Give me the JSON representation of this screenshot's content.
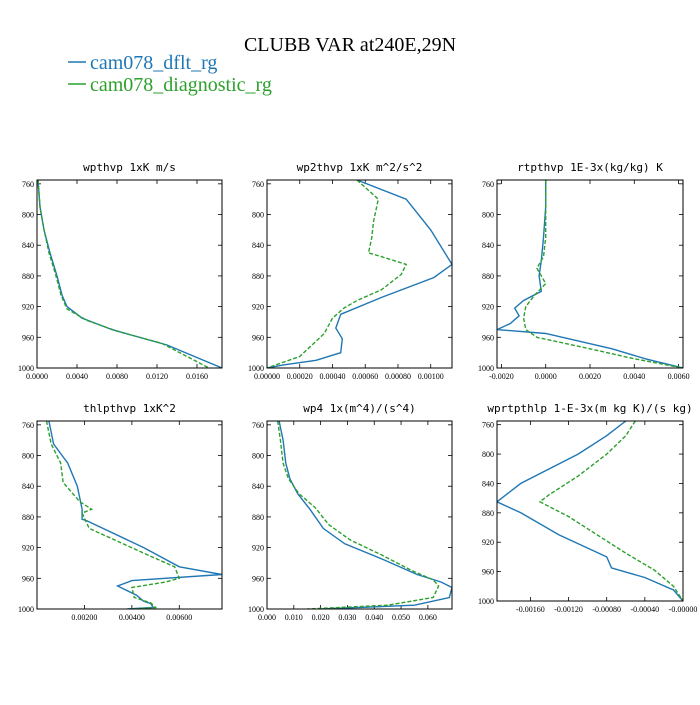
{
  "figure": {
    "title": "CLUBB VAR at240E,29N",
    "legend": [
      {
        "label": "cam078_dflt_rg",
        "color": "#1f77b4",
        "dash": "solid"
      },
      {
        "label": "cam078_diagnostic_rg",
        "color": "#2ca02c",
        "dash": "dashed"
      }
    ]
  },
  "chart_data": [
    {
      "type": "line",
      "title": "wpthvp  1xK m/s",
      "xlim": [
        0,
        0.0185
      ],
      "xticks": [
        0,
        0.004,
        0.008,
        0.012,
        0.016
      ],
      "xtick_labels": [
        "0.0000",
        "0.0040",
        "0.0080",
        "0.0120",
        "0.0160"
      ],
      "ylim": [
        1000,
        755
      ],
      "yticks": [
        1000,
        960,
        920,
        880,
        840,
        800,
        760
      ],
      "ytick_labels": [
        "1000",
        "960",
        "920",
        "880",
        "840",
        "800",
        "760"
      ],
      "series": [
        {
          "name": "cam078_dflt_rg",
          "x": [
            0.0001,
            0.0003,
            0.0007,
            0.0013,
            0.002,
            0.0025,
            0.003,
            0.0045,
            0.0075,
            0.013,
            0.0185
          ],
          "y": [
            755,
            790,
            820,
            850,
            880,
            905,
            920,
            935,
            950,
            970,
            1000
          ]
        },
        {
          "name": "cam078_diagnostic_rg",
          "x": [
            0.0001,
            0.0003,
            0.0007,
            0.0012,
            0.0019,
            0.0024,
            0.003,
            0.005,
            0.008,
            0.0125,
            0.0172
          ],
          "y": [
            755,
            790,
            820,
            850,
            880,
            905,
            923,
            938,
            952,
            968,
            1000
          ]
        }
      ]
    },
    {
      "type": "line",
      "title": "wp2thvp  1xK m^2/s^2",
      "xlim": [
        0,
        0.00113
      ],
      "xticks": [
        0,
        0.0002,
        0.0004,
        0.0006,
        0.0008,
        0.001
      ],
      "xtick_labels": [
        "0.00000",
        "0.00020",
        "0.00040",
        "0.00060",
        "0.00080",
        "0.00100"
      ],
      "ylim": [
        1000,
        755
      ],
      "yticks": [
        1000,
        960,
        920,
        880,
        840,
        800,
        760
      ],
      "ytick_labels": [
        "1000",
        "960",
        "920",
        "880",
        "840",
        "800",
        "760"
      ],
      "series": [
        {
          "name": "cam078_dflt_rg",
          "x": [
            0.00055,
            0.00085,
            0.001,
            0.00113,
            0.00102,
            0.0007,
            0.00045,
            0.00042,
            0.00046,
            0.00045,
            0.0003,
            0.0001,
            0.0
          ],
          "y": [
            755,
            780,
            820,
            865,
            882,
            908,
            930,
            948,
            962,
            980,
            990,
            996,
            1000
          ]
        },
        {
          "name": "cam078_diagnostic_rg",
          "x": [
            0.00055,
            0.00068,
            0.00065,
            0.00064,
            0.00062,
            0.0007,
            0.00085,
            0.00082,
            0.0007,
            0.00055,
            0.00047,
            0.0004,
            0.00035,
            0.0002,
            0.0
          ],
          "y": [
            755,
            780,
            810,
            830,
            850,
            855,
            865,
            878,
            898,
            912,
            922,
            935,
            955,
            985,
            1000
          ]
        }
      ]
    },
    {
      "type": "line",
      "title": "rtpthvp  1E-3x(kg/kg) K",
      "xlim": [
        -0.0022,
        0.0062
      ],
      "xticks": [
        -0.002,
        0,
        0.002,
        0.004,
        0.006
      ],
      "xtick_labels": [
        "-0.0020",
        "0.0000",
        "0.0020",
        "0.0040",
        "0.0060"
      ],
      "ylim": [
        1000,
        755
      ],
      "yticks": [
        1000,
        960,
        920,
        880,
        840,
        800,
        760
      ],
      "ytick_labels": [
        "1000",
        "960",
        "920",
        "880",
        "840",
        "800",
        "760"
      ],
      "series": [
        {
          "name": "cam078_dflt_rg",
          "x": [
            0.0,
            0.0,
            -0.0001,
            -0.0002,
            -0.0003,
            -0.0002,
            -0.001,
            -0.0014,
            -0.0012,
            -0.0016,
            -0.0022,
            0.0,
            0.003,
            0.0045,
            0.0062
          ],
          "y": [
            755,
            790,
            830,
            860,
            880,
            900,
            912,
            922,
            932,
            942,
            950,
            955,
            975,
            988,
            1000
          ]
        },
        {
          "name": "cam078_diagnostic_rg",
          "x": [
            0.0,
            0.0,
            0.0,
            -0.0001,
            -0.0004,
            -0.0002,
            0.0,
            -0.0005,
            -0.0009,
            -0.001,
            -0.0009,
            -0.0004,
            0.002,
            0.004,
            0.0062
          ],
          "y": [
            755,
            790,
            830,
            855,
            870,
            880,
            890,
            905,
            920,
            935,
            950,
            960,
            975,
            988,
            1000
          ]
        }
      ]
    },
    {
      "type": "line",
      "title": "thlpthvp  1xK^2",
      "xlim": [
        0,
        0.0078
      ],
      "xticks": [
        0.002,
        0.004,
        0.006
      ],
      "xtick_labels": [
        "0.00200",
        "0.00400",
        "0.00600"
      ],
      "ylim": [
        1000,
        755
      ],
      "yticks": [
        1000,
        960,
        920,
        880,
        840,
        800,
        760
      ],
      "ytick_labels": [
        "1000",
        "960",
        "920",
        "880",
        "840",
        "800",
        "760"
      ],
      "series": [
        {
          "name": "cam078_dflt_rg",
          "x": [
            0.0005,
            0.0007,
            0.0013,
            0.0017,
            0.0019,
            0.0019,
            0.0021,
            0.0045,
            0.006,
            0.0078,
            0.004,
            0.0034,
            0.0042,
            0.0045,
            0.0048,
            0.0049,
            0.0038
          ],
          "y": [
            755,
            785,
            810,
            840,
            870,
            883,
            885,
            920,
            945,
            955,
            963,
            970,
            982,
            990,
            993,
            998,
            1000
          ]
        },
        {
          "name": "cam078_diagnostic_rg",
          "x": [
            0.0004,
            0.0006,
            0.001,
            0.0011,
            0.0018,
            0.0023,
            0.0019,
            0.0022,
            0.0047,
            0.0058,
            0.006,
            0.0054,
            0.004,
            0.0041,
            0.0048,
            0.005,
            0.004
          ],
          "y": [
            755,
            785,
            810,
            835,
            860,
            870,
            875,
            895,
            930,
            945,
            960,
            965,
            972,
            985,
            992,
            998,
            1000
          ]
        }
      ]
    },
    {
      "type": "line",
      "title": "wp4  1x(m^4)/(s^4)",
      "xlim": [
        0,
        0.069
      ],
      "xticks": [
        0,
        0.01,
        0.02,
        0.03,
        0.04,
        0.05,
        0.06
      ],
      "xtick_labels": [
        "0.000",
        "0.010",
        "0.020",
        "0.030",
        "0.040",
        "0.050",
        "0.060"
      ],
      "ylim": [
        1000,
        755
      ],
      "yticks": [
        1000,
        960,
        920,
        880,
        840,
        800,
        760
      ],
      "ytick_labels": [
        "1000",
        "960",
        "920",
        "880",
        "840",
        "800",
        "760"
      ],
      "series": [
        {
          "name": "cam078_dflt_rg",
          "x": [
            0.0045,
            0.006,
            0.007,
            0.0085,
            0.0115,
            0.016,
            0.021,
            0.029,
            0.043,
            0.056,
            0.065,
            0.069,
            0.068,
            0.055,
            0.02
          ],
          "y": [
            755,
            780,
            810,
            830,
            850,
            870,
            895,
            915,
            935,
            955,
            965,
            972,
            985,
            995,
            1000
          ]
        },
        {
          "name": "cam078_diagnostic_rg",
          "x": [
            0.004,
            0.005,
            0.006,
            0.008,
            0.012,
            0.018,
            0.023,
            0.031,
            0.043,
            0.054,
            0.062,
            0.064,
            0.062,
            0.045,
            0.015
          ],
          "y": [
            755,
            780,
            810,
            830,
            850,
            868,
            890,
            910,
            930,
            950,
            962,
            970,
            985,
            995,
            1000
          ]
        }
      ]
    },
    {
      "type": "line",
      "title": "wprtpthlp  1-E-3x(m kg K)/(s kg)",
      "xlim": [
        -0.00195,
        0
      ],
      "xticks": [
        -0.0016,
        -0.0012,
        -0.0008,
        -0.0004,
        0
      ],
      "xtick_labels": [
        "-0.00160",
        "-0.00120",
        "-0.00080",
        "-0.00040",
        "-0.00000"
      ],
      "ylim": [
        1000,
        755
      ],
      "yticks": [
        1000,
        960,
        920,
        880,
        840,
        800,
        760
      ],
      "ytick_labels": [
        "1000",
        "960",
        "920",
        "880",
        "840",
        "800",
        "760"
      ],
      "series": [
        {
          "name": "cam078_dflt_rg",
          "x": [
            -0.0006,
            -0.0008,
            -0.0011,
            -0.0017,
            -0.00195,
            -0.0017,
            -0.0013,
            -0.0008,
            -0.00075,
            -0.0004,
            -0.0001,
            0.0
          ],
          "y": [
            755,
            775,
            800,
            840,
            865,
            880,
            910,
            940,
            955,
            968,
            985,
            1000
          ]
        },
        {
          "name": "cam078_diagnostic_rg",
          "x": [
            -0.0005,
            -0.0006,
            -0.0008,
            -0.0011,
            -0.0014,
            -0.0015,
            -0.0012,
            -0.0009,
            -0.0006,
            -0.0003,
            -0.0001,
            0.0
          ],
          "y": [
            755,
            775,
            800,
            830,
            855,
            865,
            885,
            910,
            935,
            958,
            980,
            1000
          ]
        }
      ]
    }
  ]
}
